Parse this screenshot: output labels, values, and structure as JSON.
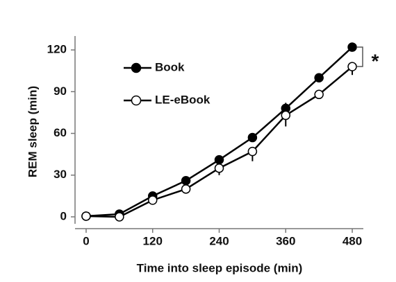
{
  "chart_data": {
    "type": "line",
    "x_label": "Time into sleep episode (min)",
    "y_label": "REM sleep (min)",
    "x": [
      0,
      60,
      120,
      180,
      240,
      300,
      360,
      420,
      480
    ],
    "series": [
      {
        "name": "Book",
        "color": "#000000",
        "marker_fill": "#000000",
        "values": [
          0.5,
          2,
          15,
          26,
          41,
          57,
          78,
          100,
          122
        ],
        "errors": [
          1,
          2,
          3,
          3,
          3,
          3,
          4,
          3,
          3
        ]
      },
      {
        "name": "LE-eBook",
        "color": "#000000",
        "marker_fill": "#ffffff",
        "values": [
          0.5,
          0,
          12,
          20,
          35,
          47,
          73,
          88,
          108
        ],
        "errors": [
          1,
          1,
          2,
          3,
          5,
          7,
          8,
          3,
          6
        ]
      }
    ],
    "annotation": "*",
    "xlim": [
      -20,
      500
    ],
    "xticks": [
      0,
      120,
      240,
      360,
      480
    ],
    "ylim": [
      -5,
      130
    ],
    "yticks": [
      0,
      30,
      60,
      90,
      120
    ],
    "legend": "upper left"
  }
}
